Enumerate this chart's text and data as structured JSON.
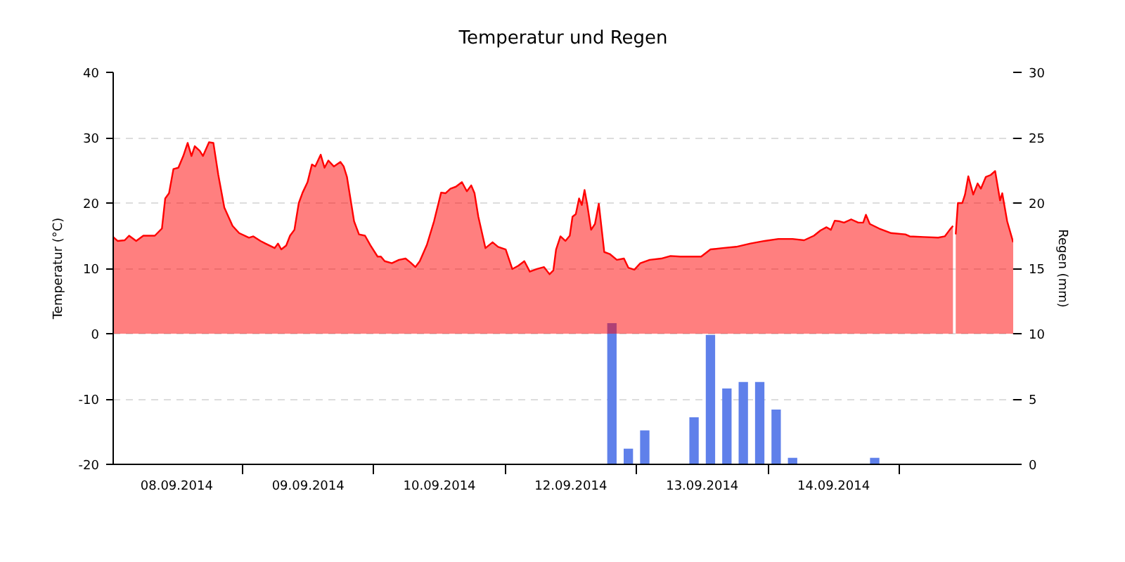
{
  "chart_data": {
    "type": "area",
    "title": "Temperatur und Regen",
    "ylabel": "Temperatur (°C)",
    "y2label": "Regen (mm)",
    "xlim": [
      "2014-09-08T00:24",
      "2014-09-14T20:48"
    ],
    "xticks": [
      {
        "value": "2014-09-08T12:00",
        "label": "08.09.2014"
      },
      {
        "value": "2014-09-09T00:00",
        "label": null
      },
      {
        "value": "2014-09-09T12:00",
        "label": "09.09.2014"
      },
      {
        "value": "2014-09-10T00:00",
        "label": null
      },
      {
        "value": "2014-09-10T12:00",
        "label": "10.09.2014"
      },
      {
        "value": "2014-09-11T00:00",
        "label": null
      },
      {
        "value": "2014-09-11T12:00",
        "label": "12.09.2014"
      },
      {
        "value": "2014-09-12T00:00",
        "label": null
      },
      {
        "value": "2014-09-12T12:00",
        "label": "13.09.2014"
      },
      {
        "value": "2014-09-13T00:00",
        "label": null
      },
      {
        "value": "2014-09-13T12:00",
        "label": "14.09.2014"
      },
      {
        "value": "2014-09-14T00:00",
        "label": null
      }
    ],
    "ylim": [
      -20,
      40
    ],
    "yticks": [
      -20,
      -10,
      0,
      10,
      20,
      30,
      40
    ],
    "y2lim": [
      0,
      30
    ],
    "y2ticks": [
      0,
      5,
      10,
      15,
      20,
      25,
      30
    ],
    "grid": "y",
    "series": [
      {
        "type": "bar",
        "axis": "y2",
        "color": "#5f80ea",
        "x": [
          "2014-09-11T19:30",
          "2014-09-11T22:30",
          "2014-09-12T01:30",
          "2014-09-12T10:30",
          "2014-09-12T13:30",
          "2014-09-12T16:30",
          "2014-09-12T19:30",
          "2014-09-12T22:30",
          "2014-09-13T01:30",
          "2014-09-13T04:30",
          "2014-09-13T19:30"
        ],
        "values": [
          10.8,
          1.2,
          2.6,
          3.6,
          9.9,
          5.8,
          6.3,
          6.3,
          4.2,
          0.5,
          0.5
        ]
      },
      {
        "color": "#ff0000",
        "x": [
          "2014-09-08T00:24",
          "2014-09-08T01:12",
          "2014-09-08T02:30",
          "2014-09-08T03:18",
          "2014-09-08T04:36",
          "2014-09-08T05:54",
          "2014-09-08T08:00",
          "2014-09-08T09:18",
          "2014-09-08T09:54",
          "2014-09-08T10:36",
          "2014-09-08T11:24",
          "2014-09-08T12:18",
          "2014-09-08T13:12",
          "2014-09-08T14:00",
          "2014-09-08T14:42",
          "2014-09-08T15:18",
          "2014-09-08T16:12",
          "2014-09-08T16:48",
          "2014-09-08T17:54",
          "2014-09-08T18:42",
          "2014-09-08T19:36",
          "2014-09-08T20:42",
          "2014-09-08T22:12",
          "2014-09-08T23:24",
          "2014-09-09T01:12",
          "2014-09-09T02:00",
          "2014-09-09T03:18",
          "2014-09-09T04:12",
          "2014-09-09T05:54",
          "2014-09-09T06:30",
          "2014-09-09T07:06",
          "2014-09-09T08:00",
          "2014-09-09T08:42",
          "2014-09-09T09:30",
          "2014-09-09T10:18",
          "2014-09-09T11:00",
          "2014-09-09T11:54",
          "2014-09-09T12:42",
          "2014-09-09T13:18",
          "2014-09-09T14:18",
          "2014-09-09T15:00",
          "2014-09-09T15:42",
          "2014-09-09T16:42",
          "2014-09-09T17:54",
          "2014-09-09T18:30",
          "2014-09-09T19:06",
          "2014-09-09T20:24",
          "2014-09-09T21:18",
          "2014-09-09T22:24",
          "2014-09-09T23:24",
          "2014-09-10T00:42",
          "2014-09-10T01:18",
          "2014-09-10T02:00",
          "2014-09-10T03:18",
          "2014-09-10T04:36",
          "2014-09-10T05:48",
          "2014-09-10T06:42",
          "2014-09-10T07:36",
          "2014-09-10T08:24",
          "2014-09-10T09:42",
          "2014-09-10T11:00",
          "2014-09-10T12:18",
          "2014-09-10T13:06",
          "2014-09-10T14:00",
          "2014-09-10T15:00",
          "2014-09-10T16:06",
          "2014-09-10T17:00",
          "2014-09-10T17:48",
          "2014-09-10T18:24",
          "2014-09-10T19:06",
          "2014-09-10T20:24",
          "2014-09-10T21:42",
          "2014-09-10T22:42",
          "2014-09-11T00:06",
          "2014-09-11T01:18",
          "2014-09-11T02:24",
          "2014-09-11T03:30",
          "2014-09-11T04:30",
          "2014-09-11T05:48",
          "2014-09-11T07:06",
          "2014-09-11T08:06",
          "2014-09-11T08:48",
          "2014-09-11T09:18",
          "2014-09-11T10:06",
          "2014-09-11T11:00",
          "2014-09-11T11:48",
          "2014-09-11T12:18",
          "2014-09-11T12:54",
          "2014-09-11T13:30",
          "2014-09-11T14:00",
          "2014-09-11T14:30",
          "2014-09-11T15:00",
          "2014-09-11T15:42",
          "2014-09-11T16:24",
          "2014-09-11T17:06",
          "2014-09-11T18:06",
          "2014-09-11T19:06",
          "2014-09-11T20:24",
          "2014-09-11T21:42",
          "2014-09-11T22:30",
          "2014-09-11T23:36",
          "2014-09-12T00:42",
          "2014-09-12T02:24",
          "2014-09-12T04:30",
          "2014-09-12T06:12",
          "2014-09-12T08:00",
          "2014-09-12T09:42",
          "2014-09-12T11:48",
          "2014-09-12T13:30",
          "2014-09-12T15:42",
          "2014-09-12T18:12",
          "2014-09-12T20:48",
          "2014-09-12T23:24",
          "2014-09-13T01:54",
          "2014-09-13T04:30",
          "2014-09-13T06:36",
          "2014-09-13T08:24",
          "2014-09-13T09:36",
          "2014-09-13T10:42",
          "2014-09-13T11:30",
          "2014-09-13T12:12",
          "2014-09-13T13:06",
          "2014-09-13T13:54",
          "2014-09-13T15:12",
          "2014-09-13T16:30",
          "2014-09-13T17:24",
          "2014-09-13T17:54",
          "2014-09-13T18:36",
          "2014-09-13T20:18",
          "2014-09-13T22:30",
          "2014-09-14T01:06",
          "2014-09-14T01:54",
          "2014-09-14T04:30",
          "2014-09-14T07:06",
          "2014-09-14T08:18",
          "2014-09-14T09:12",
          "2014-09-14T09:48",
          "2014-09-14T10:06",
          "2014-09-14T10:18",
          "2014-09-14T10:42",
          "2014-09-14T11:30",
          "2014-09-14T12:00",
          "2014-09-14T12:36",
          "2014-09-14T13:30",
          "2014-09-14T14:18",
          "2014-09-14T14:54",
          "2014-09-14T15:48",
          "2014-09-14T16:42",
          "2014-09-14T17:30",
          "2014-09-14T18:24",
          "2014-09-14T18:48",
          "2014-09-14T19:42",
          "2014-09-14T20:48"
        ],
        "values": [
          14.8,
          14.2,
          14.3,
          15.0,
          14.2,
          15.0,
          15.0,
          16.1,
          20.7,
          21.5,
          25.2,
          25.4,
          27.2,
          29.2,
          27.2,
          28.7,
          28.0,
          27.2,
          29.3,
          29.2,
          24.3,
          19.3,
          16.5,
          15.4,
          14.7,
          14.9,
          14.2,
          13.8,
          13.1,
          13.8,
          12.9,
          13.5,
          15.0,
          15.9,
          20.0,
          21.6,
          23.2,
          25.9,
          25.6,
          27.4,
          25.4,
          26.5,
          25.6,
          26.3,
          25.6,
          24.0,
          17.2,
          15.2,
          15.0,
          13.5,
          11.8,
          11.8,
          11.1,
          10.8,
          11.3,
          11.5,
          10.9,
          10.2,
          11.1,
          13.6,
          17.2,
          21.6,
          21.5,
          22.2,
          22.5,
          23.2,
          21.8,
          22.7,
          21.5,
          17.9,
          13.1,
          14.0,
          13.3,
          12.9,
          9.9,
          10.4,
          11.1,
          9.5,
          9.9,
          10.2,
          9.1,
          9.7,
          12.9,
          14.9,
          14.2,
          15.0,
          17.9,
          18.3,
          20.7,
          19.7,
          22.0,
          19.7,
          15.9,
          16.8,
          19.9,
          12.5,
          12.2,
          11.3,
          11.5,
          10.1,
          9.8,
          10.8,
          11.3,
          11.5,
          11.9,
          11.8,
          11.8,
          11.8,
          12.9,
          13.1,
          13.3,
          13.8,
          14.2,
          14.5,
          14.5,
          14.3,
          15.0,
          15.8,
          16.3,
          15.9,
          17.3,
          17.2,
          17.0,
          17.5,
          17.0,
          17.0,
          18.2,
          16.8,
          16.1,
          15.4,
          15.2,
          14.9,
          14.8,
          14.7,
          14.9,
          15.9,
          16.5,
          null,
          15.2,
          20.0,
          20.0,
          21.3,
          24.1,
          21.3,
          23.0,
          22.2,
          24.0,
          24.3,
          24.9,
          20.4,
          21.5,
          17.2,
          14.0
        ]
      }
    ]
  }
}
